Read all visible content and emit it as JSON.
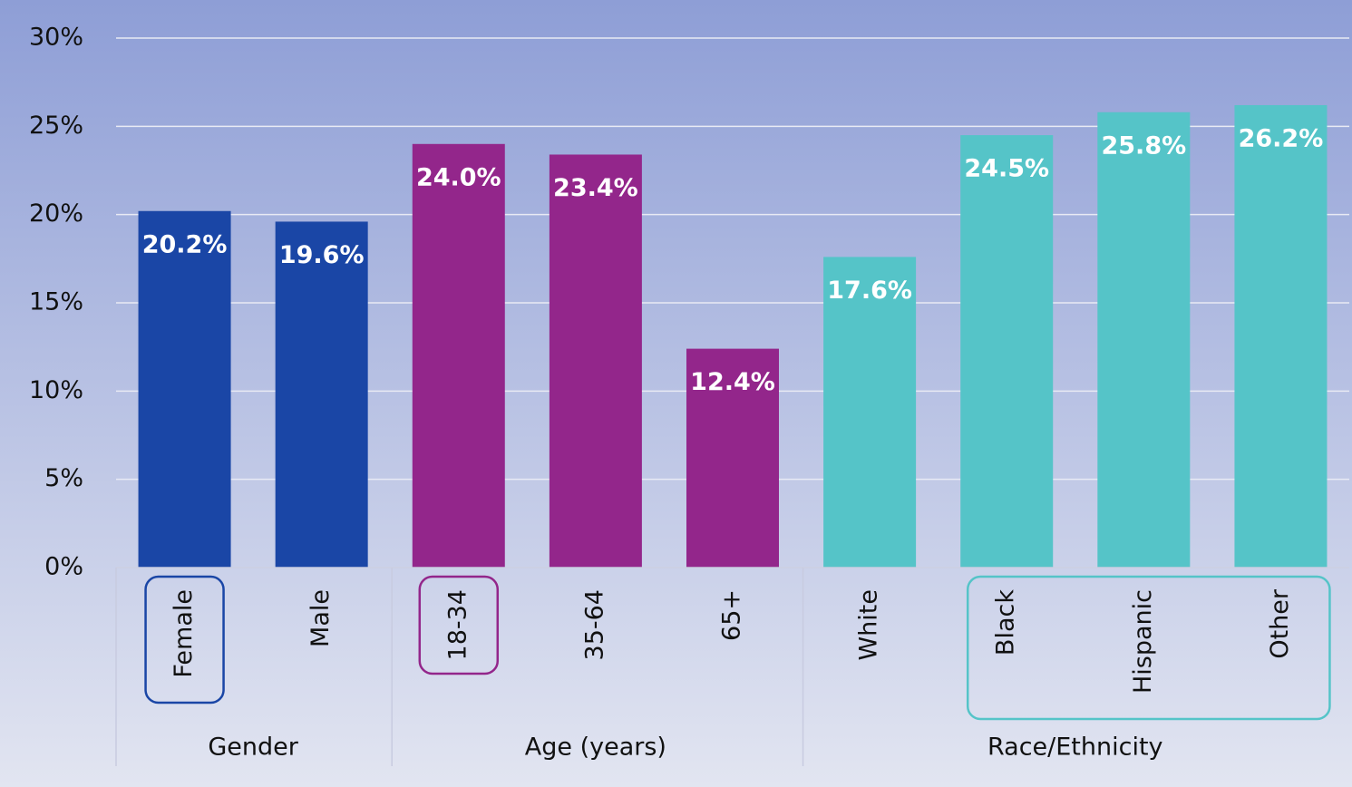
{
  "chart_data": {
    "type": "bar",
    "groups": [
      {
        "name": "Gender",
        "color": "#1a46a6",
        "categories": [
          "Female",
          "Male"
        ],
        "values": [
          20.2,
          19.6
        ],
        "value_labels": [
          "20.2%",
          "19.6%"
        ]
      },
      {
        "name": "Age (years)",
        "color": "#93268b",
        "categories": [
          "18-34",
          "35-64",
          "65+"
        ],
        "values": [
          24.0,
          23.4,
          12.4
        ],
        "value_labels": [
          "24.0%",
          "23.4%",
          "12.4%"
        ]
      },
      {
        "name": "Race/Ethnicity",
        "color": "#55c4c8",
        "categories": [
          "White",
          "Black",
          "Hispanic",
          "Other"
        ],
        "values": [
          17.6,
          24.5,
          25.8,
          26.2
        ],
        "value_labels": [
          "17.6%",
          "24.5%",
          "25.8%",
          "26.2%"
        ]
      }
    ],
    "ylim": [
      0,
      30
    ],
    "yticks": [
      {
        "value": 0,
        "label": "0%"
      },
      {
        "value": 5,
        "label": "5%"
      },
      {
        "value": 10,
        "label": "10%"
      },
      {
        "value": 15,
        "label": "15%"
      },
      {
        "value": 20,
        "label": "20%"
      },
      {
        "value": 25,
        "label": "25%"
      },
      {
        "value": 30,
        "label": "30%"
      }
    ],
    "grid": true
  }
}
